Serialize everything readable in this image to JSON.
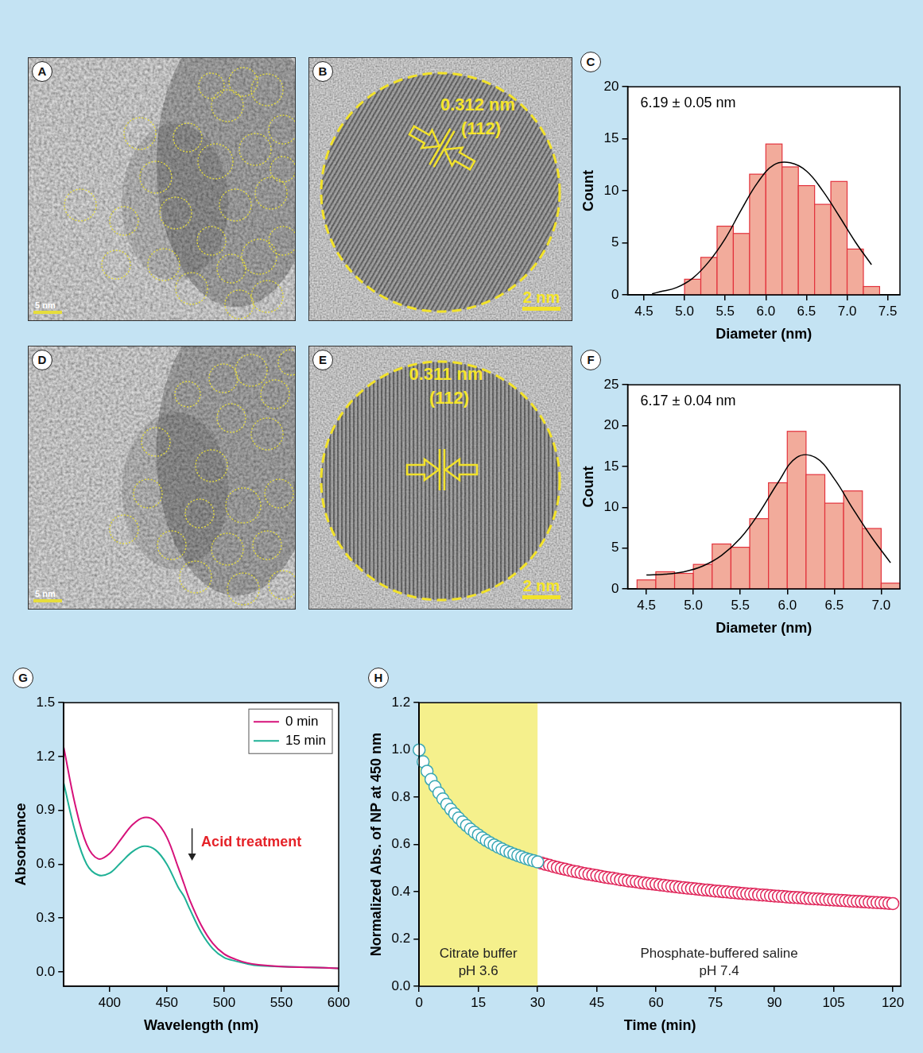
{
  "micrographs": [
    {
      "panel": "A",
      "scale_bar": "5 nm"
    },
    {
      "panel": "B",
      "scale_bar": "2 nm",
      "spacing": "0.312 nm",
      "plane": "(112)"
    },
    {
      "panel": "D",
      "scale_bar": "5 nm"
    },
    {
      "panel": "E",
      "scale_bar": "2 nm",
      "spacing": "0.311 nm",
      "plane": "(112)"
    }
  ],
  "chart_data": [
    {
      "panel": "C",
      "type": "histogram",
      "annotation": "6.19 ± 0.05 nm",
      "x_label": "Diameter (nm)",
      "y_label": "Count",
      "color": "#f2ab9b",
      "bins": [
        5.0,
        5.2,
        5.4,
        5.6,
        5.8,
        6.0,
        6.2,
        6.4,
        6.6,
        6.8,
        7.0,
        7.2,
        7.4
      ],
      "counts": [
        1.5,
        3.6,
        6.6,
        5.9,
        11.6,
        14.5,
        12.3,
        10.5,
        8.7,
        10.9,
        4.4,
        0.8
      ],
      "fit": {
        "color": "#000000",
        "x": [
          4.6,
          4.7,
          4.9,
          5.1,
          5.3,
          5.5,
          5.7,
          5.9,
          6.1,
          6.3,
          6.5,
          6.7,
          6.9,
          7.1,
          7.3
        ],
        "values": [
          0.1,
          0.3,
          0.7,
          1.6,
          3.2,
          5.4,
          8.2,
          10.8,
          12.5,
          12.7,
          11.9,
          10.0,
          7.6,
          5.1,
          2.9
        ]
      },
      "xlim": [
        4.3,
        7.65
      ],
      "xticks": [
        4.5,
        {
          "value": 5,
          "label": "5.0"
        },
        5.5,
        {
          "value": 6,
          "label": "6.0"
        },
        6.5,
        {
          "value": 7,
          "label": "7.0"
        },
        7.5
      ],
      "ylim": [
        0,
        20
      ],
      "yticks": [
        0,
        5,
        10,
        15,
        20
      ],
      "grid": false
    },
    {
      "panel": "F",
      "type": "histogram",
      "annotation": "6.17 ± 0.04 nm",
      "x_label": "Diameter (nm)",
      "y_label": "Count",
      "color": "#f2ab9b",
      "bins": [
        4.4,
        4.6,
        4.8,
        5.0,
        5.2,
        5.4,
        5.6,
        5.8,
        6.0,
        6.2,
        6.4,
        6.6,
        6.8,
        7.0,
        7.2
      ],
      "counts": [
        1.1,
        2.1,
        1.9,
        3.0,
        5.5,
        5.1,
        8.6,
        13.0,
        19.3,
        14.0,
        10.5,
        12.0,
        7.4,
        0.7
      ],
      "fit": {
        "color": "#000000",
        "x": [
          4.5,
          4.7,
          4.9,
          5.1,
          5.3,
          5.5,
          5.7,
          5.9,
          6.1,
          6.3,
          6.5,
          6.7,
          6.9,
          7.1
        ],
        "values": [
          1.7,
          1.8,
          2.1,
          2.8,
          4.1,
          6.2,
          9.3,
          13.0,
          16.1,
          16.1,
          13.5,
          9.8,
          6.3,
          3.2
        ]
      },
      "xlim": [
        4.3,
        7.2
      ],
      "xticks": [
        4.5,
        {
          "value": 5,
          "label": "5.0"
        },
        5.5,
        {
          "value": 6,
          "label": "6.0"
        },
        6.5,
        {
          "value": 7,
          "label": "7.0"
        }
      ],
      "ylim": [
        0,
        25
      ],
      "yticks": [
        0,
        5,
        10,
        15,
        20,
        25
      ],
      "grid": false
    },
    {
      "panel": "G",
      "type": "line",
      "x_label": "Wavelength (nm)",
      "y_label": "Absorbance",
      "x": [
        360,
        370,
        380,
        390,
        400,
        410,
        420,
        430,
        440,
        450,
        460,
        465,
        470,
        480,
        490,
        500,
        510,
        520,
        530,
        550,
        575,
        600
      ],
      "series": [
        {
          "name": "0 min",
          "color": "#d6127a",
          "values": [
            1.25,
            0.93,
            0.71,
            0.63,
            0.66,
            0.74,
            0.82,
            0.86,
            0.84,
            0.75,
            0.58,
            0.49,
            0.4,
            0.26,
            0.16,
            0.1,
            0.07,
            0.05,
            0.04,
            0.03,
            0.025,
            0.02
          ]
        },
        {
          "name": "15 min",
          "color": "#1fb196",
          "values": [
            1.05,
            0.78,
            0.6,
            0.54,
            0.55,
            0.61,
            0.67,
            0.7,
            0.68,
            0.6,
            0.47,
            0.42,
            0.35,
            0.22,
            0.13,
            0.08,
            0.06,
            0.045,
            0.035,
            0.03,
            0.025,
            0.02
          ]
        }
      ],
      "annotations": [
        {
          "text": "Acid treatment",
          "x": 480,
          "y": 0.72,
          "color": "#e52329",
          "arrow_x": 472,
          "arrow_y": [
            0.8,
            0.62
          ]
        }
      ],
      "xlim": [
        360,
        600
      ],
      "xticks": [
        400,
        450,
        500,
        550,
        600
      ],
      "ylim": [
        -0.08,
        1.5
      ],
      "yticks": [
        {
          "value": 0,
          "label": "0.0"
        },
        0.3,
        0.6,
        0.9,
        1.2,
        1.5
      ],
      "legend": "upper right",
      "grid": false
    },
    {
      "panel": "H",
      "type": "scatter",
      "x_label": "Time (min)",
      "y_label": "Normalized Abs. of NP at 450 nm",
      "series": [
        {
          "color": "#3aa7b4",
          "marker": "circle-open",
          "x": [
            0,
            1,
            2,
            3,
            4,
            5,
            6,
            7,
            8,
            9,
            10,
            11,
            12,
            13,
            14,
            15,
            16,
            17,
            18,
            19,
            20,
            21,
            22,
            23,
            24,
            25,
            26,
            27,
            28,
            29,
            30
          ],
          "values": [
            1.0,
            0.95,
            0.91,
            0.875,
            0.845,
            0.818,
            0.793,
            0.77,
            0.749,
            0.73,
            0.712,
            0.695,
            0.68,
            0.665,
            0.652,
            0.64,
            0.628,
            0.617,
            0.607,
            0.598,
            0.589,
            0.581,
            0.573,
            0.566,
            0.559,
            0.553,
            0.547,
            0.541,
            0.536,
            0.531,
            0.526
          ]
        },
        {
          "color": "#e0265a",
          "marker": "circle-open",
          "x": [
            31,
            32,
            33,
            34,
            35,
            36,
            37,
            38,
            39,
            40,
            41,
            42,
            43,
            44,
            45,
            46,
            47,
            48,
            49,
            50,
            51,
            52,
            53,
            54,
            55,
            56,
            57,
            58,
            59,
            60,
            61,
            62,
            63,
            64,
            65,
            66,
            67,
            68,
            69,
            70,
            71,
            72,
            73,
            74,
            75,
            76,
            77,
            78,
            79,
            80,
            81,
            82,
            83,
            84,
            85,
            86,
            87,
            88,
            89,
            90,
            91,
            92,
            93,
            94,
            95,
            96,
            97,
            98,
            99,
            100,
            101,
            102,
            103,
            104,
            105,
            106,
            107,
            108,
            109,
            110,
            111,
            112,
            113,
            114,
            115,
            116,
            117,
            118,
            119,
            120
          ],
          "values": [
            0.521,
            0.516,
            0.512,
            0.507,
            0.503,
            0.499,
            0.495,
            0.491,
            0.487,
            0.484,
            0.48,
            0.477,
            0.474,
            0.471,
            0.468,
            0.465,
            0.462,
            0.459,
            0.457,
            0.454,
            0.451,
            0.449,
            0.446,
            0.444,
            0.442,
            0.439,
            0.437,
            0.435,
            0.433,
            0.431,
            0.429,
            0.427,
            0.425,
            0.423,
            0.421,
            0.419,
            0.417,
            0.415,
            0.414,
            0.412,
            0.41,
            0.408,
            0.407,
            0.405,
            0.403,
            0.402,
            0.4,
            0.399,
            0.397,
            0.396,
            0.394,
            0.393,
            0.391,
            0.39,
            0.389,
            0.387,
            0.386,
            0.385,
            0.383,
            0.382,
            0.381,
            0.38,
            0.378,
            0.377,
            0.376,
            0.375,
            0.374,
            0.372,
            0.371,
            0.37,
            0.369,
            0.368,
            0.367,
            0.366,
            0.365,
            0.364,
            0.363,
            0.362,
            0.361,
            0.36,
            0.359,
            0.358,
            0.357,
            0.356,
            0.355,
            0.354,
            0.353,
            0.352,
            0.351,
            0.35
          ]
        }
      ],
      "regions": [
        {
          "xlim": [
            0,
            30
          ],
          "color": "#f5f08c",
          "text": [
            "Citrate buffer",
            "pH 3.6"
          ]
        },
        {
          "xlim": [
            30,
            122
          ],
          "text": [
            "Phosphate-buffered saline",
            "pH 7.4"
          ]
        }
      ],
      "xlim": [
        0,
        122
      ],
      "xticks": [
        0,
        15,
        30,
        45,
        60,
        75,
        90,
        105,
        120
      ],
      "ylim": [
        0,
        1.2
      ],
      "yticks": [
        {
          "value": 0,
          "label": "0.0"
        },
        0.2,
        0.4,
        0.6,
        0.8,
        {
          "value": 1,
          "label": "1.0"
        },
        1.2
      ],
      "grid": false
    }
  ]
}
